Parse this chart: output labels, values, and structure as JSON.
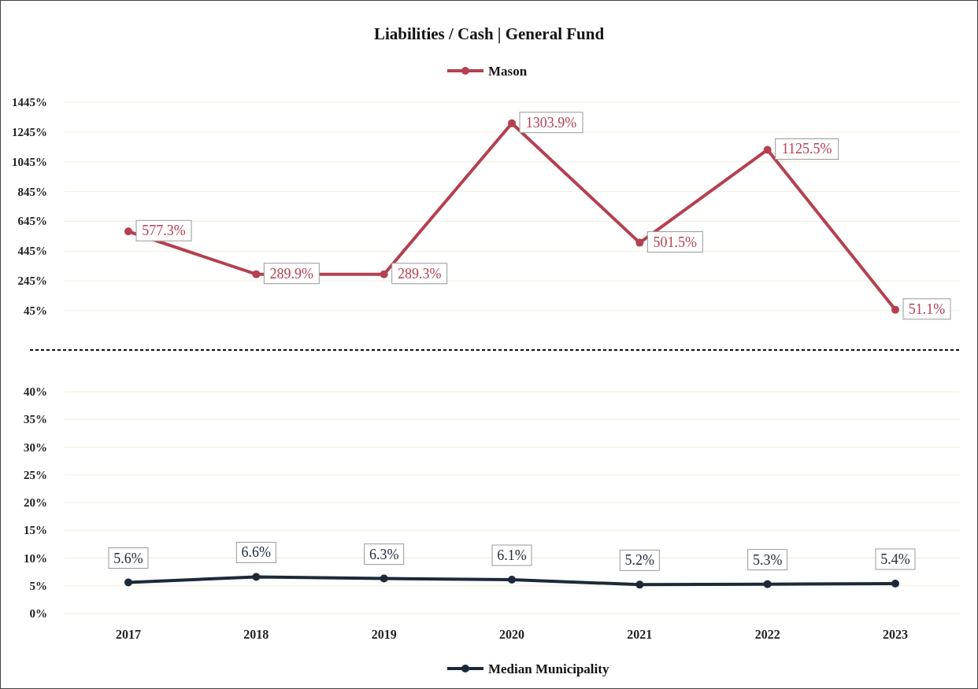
{
  "chart_data": [
    {
      "type": "line",
      "title": "Liabilities / Cash | General Fund",
      "categories": [
        "2017",
        "2018",
        "2019",
        "2020",
        "2021",
        "2022",
        "2023"
      ],
      "series": [
        {
          "name": "Mason",
          "color": "#b5404f",
          "values": [
            577.3,
            289.9,
            289.3,
            1303.9,
            501.5,
            1125.5,
            51.1
          ],
          "value_labels": [
            "577.3%",
            "289.9%",
            "289.3%",
            "1303.9%",
            "501.5%",
            "1125.5%",
            "51.1%"
          ]
        }
      ],
      "ylim": [
        45,
        1445
      ],
      "yticks": [
        {
          "value": 45,
          "label": "45%"
        },
        {
          "value": 245,
          "label": "245%"
        },
        {
          "value": 445,
          "label": "445%"
        },
        {
          "value": 645,
          "label": "645%"
        },
        {
          "value": 845,
          "label": "845%"
        },
        {
          "value": 1045,
          "label": "1045%"
        },
        {
          "value": 1245,
          "label": "1245%"
        },
        {
          "value": 1445,
          "label": "1445%"
        }
      ],
      "grid": "y",
      "legend": "top",
      "marker": "circle",
      "tick_labels": "y"
    },
    {
      "type": "line",
      "categories": [
        "2017",
        "2018",
        "2019",
        "2020",
        "2021",
        "2022",
        "2023"
      ],
      "series": [
        {
          "name": "Median Municipality",
          "color": "#1b2a3a",
          "values": [
            5.6,
            6.6,
            6.3,
            6.1,
            5.2,
            5.3,
            5.4
          ],
          "value_labels": [
            "5.6%",
            "6.6%",
            "6.3%",
            "6.1%",
            "5.2%",
            "5.3%",
            "5.4%"
          ]
        }
      ],
      "ylim": [
        0,
        40
      ],
      "yticks": [
        {
          "value": 0,
          "label": "0%"
        },
        {
          "value": 5,
          "label": "5%"
        },
        {
          "value": 10,
          "label": "10%"
        },
        {
          "value": 15,
          "label": "15%"
        },
        {
          "value": 20,
          "label": "20%"
        },
        {
          "value": 25,
          "label": "25%"
        },
        {
          "value": 30,
          "label": "30%"
        },
        {
          "value": 35,
          "label": "35%"
        },
        {
          "value": 40,
          "label": "40%"
        }
      ],
      "grid": "y",
      "legend": "bottom",
      "marker": "circle"
    }
  ]
}
